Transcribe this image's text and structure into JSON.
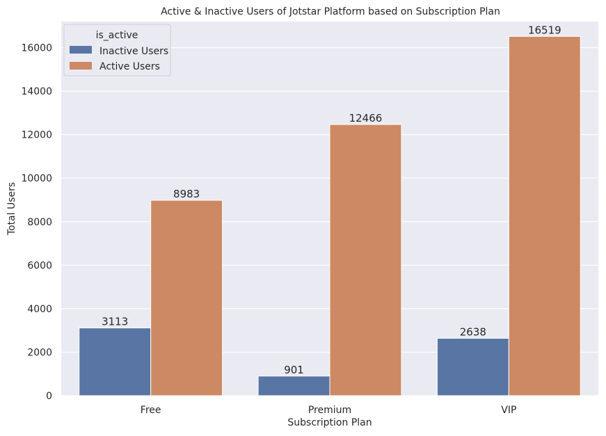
{
  "chart_data": {
    "type": "bar",
    "title": "Active & Inactive Users of Jotstar Platform based on Subscription Plan",
    "xlabel": "Subscription Plan",
    "ylabel": "Total Users",
    "categories": [
      "Free",
      "Premium",
      "VIP"
    ],
    "series": [
      {
        "name": "Inactive Users",
        "values": [
          3113,
          901,
          2638
        ],
        "color": "#5875a4"
      },
      {
        "name": "Active Users",
        "values": [
          8983,
          12466,
          16519
        ],
        "color": "#cc8963"
      }
    ],
    "ylim": [
      0,
      17200
    ],
    "yticks": [
      0,
      2000,
      4000,
      6000,
      8000,
      10000,
      12000,
      14000,
      16000
    ],
    "grid": true,
    "legend": {
      "title": "is_active",
      "position": "top-left"
    },
    "background": "#eaeaf2",
    "grid_color": "#ffffff"
  }
}
